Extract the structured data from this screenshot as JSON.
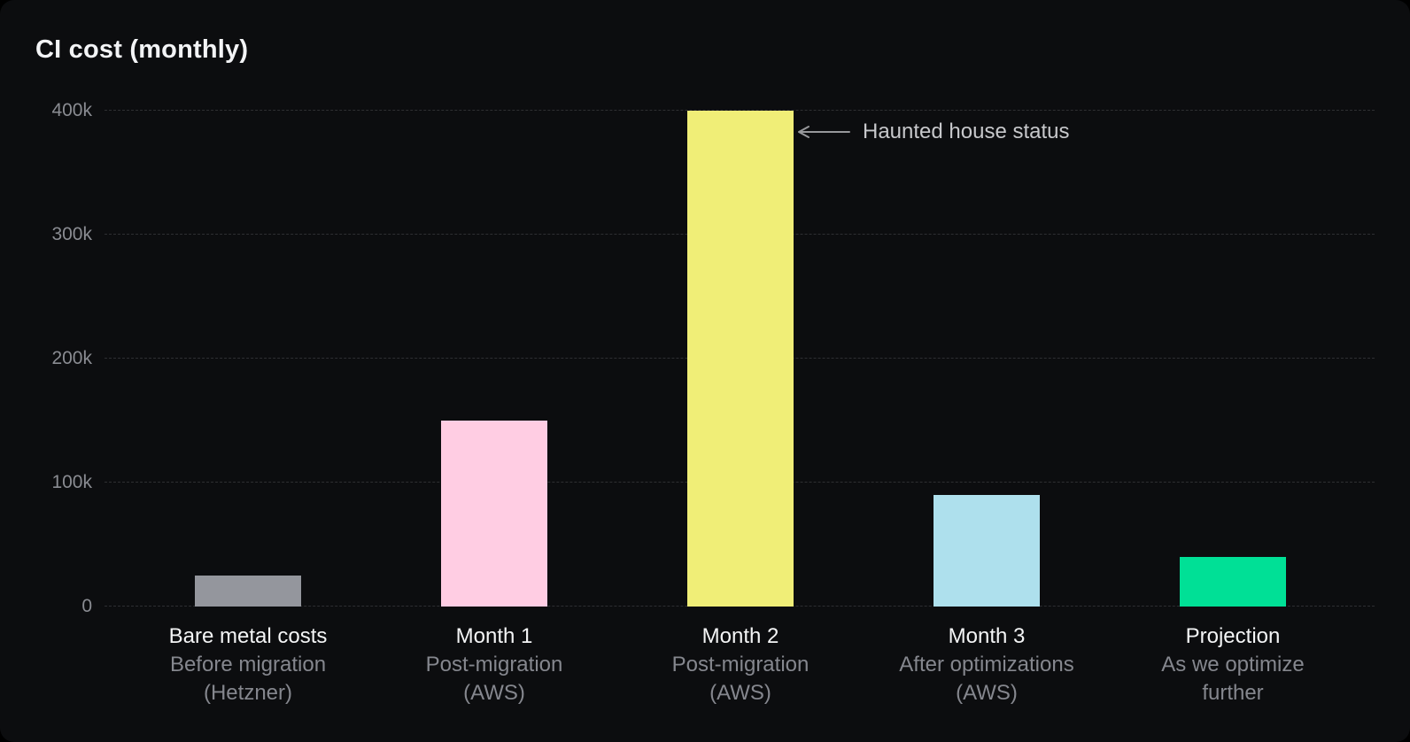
{
  "colors": {
    "background": "#0C0D0F",
    "grid": "#2E2F32",
    "title_text": "#F3F4F6",
    "tick_text": "#8A8C92",
    "label_main_text": "#F4F5F6",
    "label_sub_text": "#85878E",
    "annotation_text": "#C7C8CB",
    "arrow": "#97989B"
  },
  "chart_data": {
    "type": "bar",
    "title": "CI cost (monthly)",
    "categories": [
      "Bare metal costs",
      "Month 1",
      "Month 2",
      "Month 3",
      "Projection"
    ],
    "category_sublabels": [
      [
        "Before migration",
        "(Hetzner)"
      ],
      [
        "Post-migration",
        "(AWS)"
      ],
      [
        "Post-migration",
        "(AWS)"
      ],
      [
        "After optimizations",
        "(AWS)"
      ],
      [
        "As we optimize",
        "further"
      ]
    ],
    "values": [
      25000,
      150000,
      400000,
      90000,
      40000
    ],
    "bar_colors": [
      "#94969D",
      "#FFCDE3",
      "#F0EE77",
      "#AEE0ED",
      "#00E096"
    ],
    "yticks": [
      {
        "label": "0",
        "value": 0
      },
      {
        "label": "100k",
        "value": 100000
      },
      {
        "label": "200k",
        "value": 200000
      },
      {
        "label": "300k",
        "value": 300000
      },
      {
        "label": "400k",
        "value": 400000
      }
    ],
    "ylim": [
      0,
      400000
    ],
    "xlabel": "",
    "ylabel": "",
    "grid": true,
    "legend": false,
    "annotation": {
      "text": "Haunted house status",
      "attached_value": 400000
    }
  }
}
